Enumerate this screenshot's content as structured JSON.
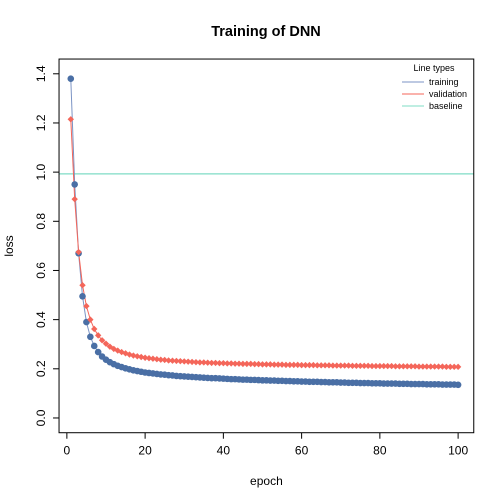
{
  "chart_data": {
    "type": "line",
    "title": "Training of DNN",
    "xlabel": "epoch",
    "ylabel": "loss",
    "xlim": [
      -2,
      104
    ],
    "ylim": [
      -0.06,
      1.46
    ],
    "x_ticks": [
      0,
      20,
      40,
      60,
      80,
      100
    ],
    "y_ticks": [
      0.0,
      0.2,
      0.4,
      0.6,
      0.8,
      1.0,
      1.2,
      1.4
    ],
    "legend": {
      "title": "Line types",
      "position": "top-right",
      "entries": [
        {
          "label": "training",
          "color": "#7b93c4"
        },
        {
          "label": "validation",
          "color": "#f4665a"
        },
        {
          "label": "baseline",
          "color": "#7fdcc6"
        }
      ]
    },
    "x": [
      1,
      2,
      3,
      4,
      5,
      6,
      7,
      8,
      9,
      10,
      11,
      12,
      13,
      14,
      15,
      16,
      17,
      18,
      19,
      20,
      21,
      22,
      23,
      24,
      25,
      26,
      27,
      28,
      29,
      30,
      31,
      32,
      33,
      34,
      35,
      36,
      37,
      38,
      39,
      40,
      41,
      42,
      43,
      44,
      45,
      46,
      47,
      48,
      49,
      50,
      51,
      52,
      53,
      54,
      55,
      56,
      57,
      58,
      59,
      60,
      61,
      62,
      63,
      64,
      65,
      66,
      67,
      68,
      69,
      70,
      71,
      72,
      73,
      74,
      75,
      76,
      77,
      78,
      79,
      80,
      81,
      82,
      83,
      84,
      85,
      86,
      87,
      88,
      89,
      90,
      91,
      92,
      93,
      94,
      95,
      96,
      97,
      98,
      99,
      100
    ],
    "series": [
      {
        "name": "training",
        "line_color": "#7b93c4",
        "marker_color": "#4a6fa5",
        "marker": "circle",
        "values": [
          1.38,
          0.95,
          0.67,
          0.495,
          0.39,
          0.33,
          0.293,
          0.268,
          0.25,
          0.237,
          0.227,
          0.219,
          0.212,
          0.207,
          0.202,
          0.198,
          0.194,
          0.191,
          0.188,
          0.185,
          0.183,
          0.181,
          0.179,
          0.177,
          0.176,
          0.174,
          0.173,
          0.171,
          0.17,
          0.169,
          0.168,
          0.167,
          0.166,
          0.165,
          0.164,
          0.163,
          0.162,
          0.162,
          0.161,
          0.16,
          0.159,
          0.158,
          0.158,
          0.157,
          0.156,
          0.156,
          0.155,
          0.155,
          0.154,
          0.153,
          0.153,
          0.152,
          0.152,
          0.151,
          0.151,
          0.15,
          0.15,
          0.149,
          0.149,
          0.148,
          0.148,
          0.147,
          0.147,
          0.147,
          0.146,
          0.146,
          0.145,
          0.145,
          0.145,
          0.144,
          0.144,
          0.143,
          0.143,
          0.143,
          0.142,
          0.142,
          0.142,
          0.141,
          0.141,
          0.141,
          0.14,
          0.14,
          0.14,
          0.14,
          0.139,
          0.139,
          0.139,
          0.138,
          0.138,
          0.138,
          0.138,
          0.137,
          0.137,
          0.137,
          0.137,
          0.136,
          0.136,
          0.136,
          0.136,
          0.135
        ]
      },
      {
        "name": "validation",
        "line_color": "#f4665a",
        "marker_color": "#f4665a",
        "marker": "diamond",
        "values": [
          1.215,
          0.89,
          0.675,
          0.54,
          0.455,
          0.4,
          0.362,
          0.336,
          0.316,
          0.302,
          0.29,
          0.281,
          0.274,
          0.268,
          0.263,
          0.258,
          0.254,
          0.251,
          0.248,
          0.245,
          0.243,
          0.241,
          0.239,
          0.237,
          0.236,
          0.234,
          0.233,
          0.232,
          0.231,
          0.23,
          0.229,
          0.228,
          0.227,
          0.226,
          0.226,
          0.225,
          0.224,
          0.224,
          0.223,
          0.223,
          0.222,
          0.222,
          0.221,
          0.221,
          0.22,
          0.22,
          0.22,
          0.219,
          0.219,
          0.218,
          0.218,
          0.218,
          0.217,
          0.217,
          0.217,
          0.216,
          0.216,
          0.216,
          0.216,
          0.215,
          0.215,
          0.215,
          0.215,
          0.214,
          0.214,
          0.214,
          0.214,
          0.213,
          0.213,
          0.213,
          0.213,
          0.213,
          0.212,
          0.212,
          0.212,
          0.212,
          0.212,
          0.211,
          0.211,
          0.211,
          0.211,
          0.211,
          0.211,
          0.21,
          0.21,
          0.21,
          0.21,
          0.21,
          0.21,
          0.209,
          0.209,
          0.209,
          0.209,
          0.209,
          0.209,
          0.209,
          0.208,
          0.208,
          0.208,
          0.208
        ]
      },
      {
        "name": "baseline",
        "line_color": "#7fdcc6",
        "type": "hline",
        "value": 0.993
      }
    ]
  }
}
